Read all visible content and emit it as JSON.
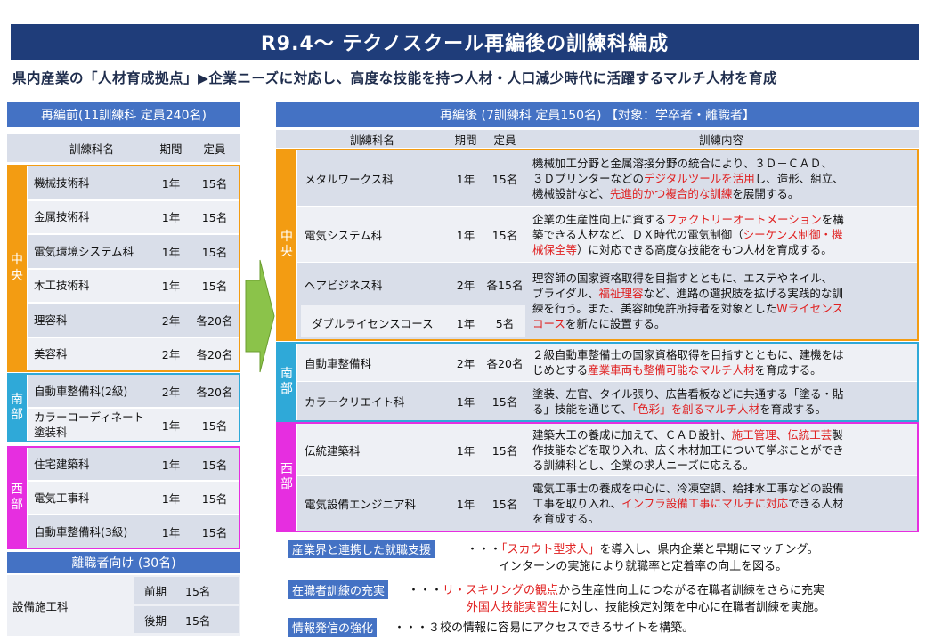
{
  "title": "R9.4～ テクノスクール再編後の訓練科編成",
  "subtitle": "県内産業の「人材育成拠点」▶企業ニーズに対応し、高度な技能を持つ人材・人口減少時代に活躍するマルチ人材を育成",
  "colors": {
    "title_bg": "#1f3d7a",
    "header_bg": "#4472c4",
    "chuo": "#f39c12",
    "nanbu": "#2fa9d8",
    "seibu": "#e62ee0",
    "red_text": "#e02020"
  },
  "before": {
    "header": "再編前(11訓練科 定員240名)",
    "col_name": "訓練科名",
    "col_period": "期間",
    "col_capacity": "定員",
    "regions": [
      {
        "label": "中\n央",
        "rows": [
          {
            "name": "機械技術科",
            "period": "1年",
            "capacity": "15名"
          },
          {
            "name": "金属技術科",
            "period": "1年",
            "capacity": "15名"
          },
          {
            "name": "電気環境システム科",
            "period": "1年",
            "capacity": "15名"
          },
          {
            "name": "木工技術科",
            "period": "1年",
            "capacity": "15名"
          },
          {
            "name": "理容科",
            "period": "2年",
            "capacity": "各20名"
          },
          {
            "name": "美容科",
            "period": "2年",
            "capacity": "各20名"
          }
        ]
      },
      {
        "label": "南\n部",
        "rows": [
          {
            "name": "自動車整備科(2級)",
            "period": "2年",
            "capacity": "各20名"
          },
          {
            "name": "カラーコーディネート塗装科",
            "period": "1年",
            "capacity": "15名"
          }
        ]
      },
      {
        "label": "西\n部",
        "rows": [
          {
            "name": "住宅建築科",
            "period": "1年",
            "capacity": "15名"
          },
          {
            "name": "電気工事科",
            "period": "1年",
            "capacity": "15名"
          },
          {
            "name": "自動車整備科(3級)",
            "period": "1年",
            "capacity": "15名"
          }
        ]
      }
    ],
    "jobseeker_header": "離職者向け (30名)",
    "jobseeker": {
      "name": "設備施工科",
      "terms": [
        {
          "term": "前期",
          "capacity": "15名"
        },
        {
          "term": "後期",
          "capacity": "15名"
        }
      ]
    }
  },
  "after": {
    "header": "再編後 (7訓練科 定員150名) 【対象：学卒者・離職者】",
    "col_name": "訓練科名",
    "col_period": "期間",
    "col_capacity": "定員",
    "col_content": "訓練内容",
    "regions": {
      "chuo": "中\n央",
      "nanbu": "南\n部",
      "seibu": "西\n部"
    },
    "rows": [
      {
        "name": "メタルワークス科",
        "period": "1年",
        "capacity": "15名",
        "content": [
          [
            "機械加工分野と金属溶接分野の統合により、３Ｄ－ＣＡＤ、",
            ""
          ],
          [
            "３Ｄプリンターなどの",
            "デジタルツールを活用",
            "し、造形、組立、"
          ],
          [
            "機械設計など、",
            "先進的かつ複合的な訓練",
            "を展開する。"
          ]
        ]
      },
      {
        "name": "電気システム科",
        "period": "1年",
        "capacity": "15名",
        "content": [
          [
            "企業の生産性向上に資する",
            "ファクトリーオートメーション",
            "を構"
          ],
          [
            "築できる人材など、ＤＸ時代の電気制御（",
            "シーケンス制御・機",
            ""
          ],
          [
            "",
            "械保全等",
            "）に対応できる高度な技能をもつ人材を育成する。"
          ]
        ]
      },
      {
        "name": "ヘアビジネス科",
        "period": "2年",
        "capacity": "各15名",
        "sub": {
          "name": "ダブルライセンスコース",
          "period": "1年",
          "capacity": "5名"
        },
        "content": [
          [
            "理容師の国家資格取得を目指すとともに、エステやネイル、",
            "",
            ""
          ],
          [
            "ブライダル、",
            "福祉理容",
            "など、進路の選択肢を拡げる実践的な訓"
          ],
          [
            "練を行う。また、美容師免許所持者を対象とした",
            "Wライセンス",
            ""
          ],
          [
            "",
            "コース",
            "を新たに設置する。"
          ]
        ]
      },
      {
        "name": "自動車整備科",
        "period": "2年",
        "capacity": "各20名",
        "content": [
          [
            "２級自動車整備士の国家資格取得を目指すとともに、建機をは",
            "",
            ""
          ],
          [
            "じめとする",
            "産業車両も整備可能なマルチ人材",
            "を育成する。"
          ]
        ]
      },
      {
        "name": "カラークリエイト科",
        "period": "1年",
        "capacity": "15名",
        "content": [
          [
            "塗装、左官、タイル張り、広告看板などに共通する「塗る・貼",
            "",
            ""
          ],
          [
            "る」技能を通じて、",
            "「色彩」を創るマルチ人材",
            "を育成する。"
          ]
        ]
      },
      {
        "name": "伝統建築科",
        "period": "1年",
        "capacity": "15名",
        "content": [
          [
            "建築大工の養成に加えて、ＣＡＤ設計、",
            "施工管理、伝統工芸",
            "製"
          ],
          [
            "作技能などを取り入れ、広く木材加工について学ぶことができ",
            "",
            ""
          ],
          [
            "る訓練科とし、企業の求人ニーズに応える。",
            "",
            ""
          ]
        ]
      },
      {
        "name": "電気設備エンジニア科",
        "period": "1年",
        "capacity": "15名",
        "content": [
          [
            "電気工事士の養成を中心に、冷凍空調、給排水工事などの設備",
            "",
            ""
          ],
          [
            "工事を取り入れ、",
            "インフラ設備工事にマルチに対応",
            "できる人材"
          ],
          [
            "を育成する。",
            "",
            ""
          ]
        ]
      }
    ]
  },
  "bottom": [
    {
      "tag": "産業界と連携した就職支援",
      "lines": [
        [
          "・・・",
          "「スカウト型求人」",
          "を導入し、県内企業と早期にマッチング。"
        ],
        [
          "",
          "",
          "インターンの実施により就職率と定着率の向上を図る。"
        ]
      ]
    },
    {
      "tag": "在職者訓練の充実",
      "lines": [
        [
          "・・・",
          "リ・スキリングの観点",
          "から生産性向上につながる在職者訓練をさらに充実"
        ],
        [
          "",
          "外国人技能実習生",
          "に対し、技能検定対策を中心に在職者訓練を実施。"
        ]
      ]
    },
    {
      "tag": "情報発信の強化",
      "lines": [
        [
          "・・・",
          "",
          "３校の情報に容易にアクセスできるサイトを構築。"
        ]
      ]
    }
  ]
}
